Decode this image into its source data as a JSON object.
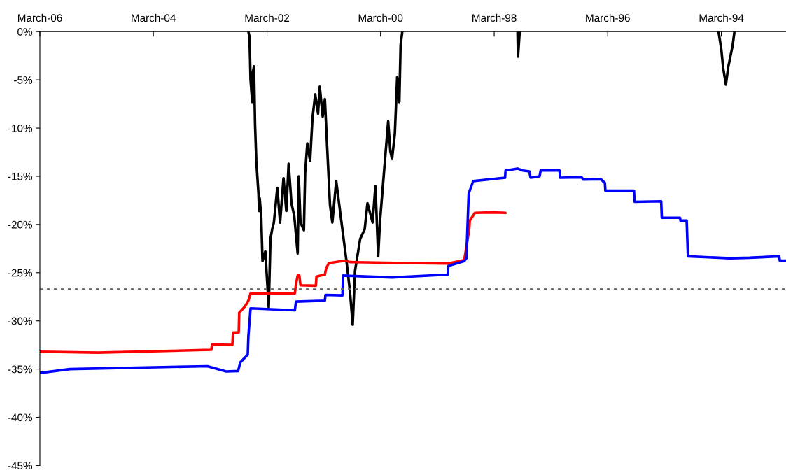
{
  "chart_data": {
    "type": "line",
    "xlim": [
      "2006-03-15",
      "1993-01-23"
    ],
    "ylim": [
      -45,
      0
    ],
    "xticks": [
      {
        "value": "2006-03-15",
        "label": "March-06"
      },
      {
        "value": "2004-03-15",
        "label": "March-04"
      },
      {
        "value": "2002-03-15",
        "label": "March-02"
      },
      {
        "value": "2000-03-15",
        "label": "March-00"
      },
      {
        "value": "1998-03-15",
        "label": "March-98"
      },
      {
        "value": "1996-03-15",
        "label": "March-96"
      },
      {
        "value": "1994-03-15",
        "label": "March-94"
      }
    ],
    "yticks": [
      {
        "value": 0,
        "label": "0%"
      },
      {
        "value": -5,
        "label": "-5%"
      },
      {
        "value": -10,
        "label": "-10%"
      },
      {
        "value": -15,
        "label": "-15%"
      },
      {
        "value": -20,
        "label": "-20%"
      },
      {
        "value": -25,
        "label": "-25%"
      },
      {
        "value": -30,
        "label": "-30%"
      },
      {
        "value": -35,
        "label": "-35%"
      },
      {
        "value": -40,
        "label": "-40%"
      },
      {
        "value": -45,
        "label": "-45%"
      }
    ],
    "grid": false,
    "marker": "none",
    "line_style": "solid",
    "ref_lines": [
      {
        "axis": "y",
        "value": -26.7,
        "color": "#606060",
        "line_style": "dashed"
      }
    ],
    "series": [
      {
        "color": "#000000",
        "x": [
          "2002-07-13",
          "2002-07-06",
          "2002-07-02",
          "2002-06-29",
          "2002-06-18",
          "2002-06-14",
          "2002-06-07",
          "2002-05-31",
          "2002-05-23",
          "2002-05-09",
          "2002-05-05",
          "2002-05-01",
          "2002-04-21",
          "2002-04-13",
          "2002-03-26",
          "2002-03-04",
          "2002-02-21",
          "2002-02-10",
          "2002-01-30",
          "2002-01-08",
          "2001-12-21",
          "2001-11-29",
          "2001-11-11",
          "2001-10-27",
          "2001-10-09",
          "2001-09-21",
          "2001-08-30",
          "2001-08-23",
          "2001-08-12",
          "2001-07-21",
          "2001-07-13",
          "2001-06-29",
          "2001-06-11",
          "2001-05-27",
          "2001-05-09",
          "2001-04-21",
          "2001-04-10",
          "2001-03-22",
          "2001-03-08",
          "2001-02-17",
          "2001-02-03",
          "2001-01-19",
          "2000-12-25",
          "2000-11-29",
          "2000-10-20",
          "2000-09-28",
          "2000-09-10",
          "2000-08-26",
          "2000-07-24",
          "2000-06-25",
          "2000-06-07",
          "2000-05-05",
          "2000-04-17",
          "2000-03-30",
          "2000-03-19",
          "2000-03-04",
          "2000-01-26",
          "2000-01-12",
          "2000-01-01",
          "1999-12-14",
          "1999-11-29",
          "1999-11-15",
          "1999-11-07",
          "1999-10-27",
          "1999-01-01",
          "1997-10-16",
          "1997-10-13",
          "1997-10-02",
          "1995-01-01",
          "1994-04-02",
          "1994-03-15",
          "1994-03-04",
          "1994-02-14",
          "1994-01-30",
          "1994-01-01",
          "1993-12-21"
        ],
        "values": [
          0,
          -0.5,
          -2.9,
          -5.0,
          -7.3,
          -4.2,
          -3.6,
          -9.6,
          -13.4,
          -16.8,
          -18.6,
          -17.3,
          -19.3,
          -23.8,
          -22.8,
          -28.6,
          -21.5,
          -20.5,
          -19.8,
          -16.2,
          -19.8,
          -15.2,
          -18.6,
          -13.7,
          -17.8,
          -19.1,
          -23.0,
          -15.0,
          -19.8,
          -20.6,
          -14.7,
          -11.6,
          -13.4,
          -9.0,
          -6.5,
          -8.5,
          -5.7,
          -8.8,
          -7.0,
          -13.4,
          -18.0,
          -19.8,
          -15.5,
          -18.8,
          -23.8,
          -26.9,
          -30.4,
          -24.8,
          -21.5,
          -20.5,
          -17.8,
          -19.8,
          -16.0,
          -23.3,
          -19.8,
          -16.8,
          -9.3,
          -12.4,
          -13.2,
          -10.6,
          -4.7,
          -7.3,
          -1.4,
          0,
          null,
          0,
          -2.6,
          0,
          null,
          0,
          -1.9,
          -3.7,
          -5.5,
          -3.7,
          -1.4,
          0
        ]
      },
      {
        "color": "#ff0000",
        "x": [
          "2006-03-15",
          "2005-03-08",
          "2003-03-08",
          "2003-03-04",
          "2002-10-24",
          "2002-10-20",
          "2002-09-13",
          "2002-09-10",
          "2002-08-04",
          "2002-07-13",
          "2002-06-29",
          "2001-09-17",
          "2001-09-10",
          "2001-08-30",
          "2001-08-19",
          "2001-08-12",
          "2001-05-05",
          "2001-05-01",
          "2001-03-08",
          "2001-02-28",
          "2001-02-10",
          "2000-10-27",
          "2000-09-28",
          "1999-10-13",
          "1999-01-08",
          "1998-09-24",
          "1998-09-06",
          "1998-08-23",
          "1998-08-19",
          "1998-07-17",
          "1998-03-26",
          "1998-01-01"
        ],
        "values": [
          -33.2,
          -33.3,
          -33.0,
          -32.45,
          -32.5,
          -31.2,
          -31.2,
          -29.15,
          -28.5,
          -27.9,
          -27.15,
          -27.15,
          -26.2,
          -25.3,
          -25.3,
          -26.3,
          -26.35,
          -25.4,
          -25.2,
          -24.55,
          -24.0,
          -23.75,
          -23.9,
          -24.0,
          -24.05,
          -23.7,
          -22.0,
          -20.5,
          -19.6,
          -18.8,
          -18.75,
          -18.8
        ]
      },
      {
        "color": "#0000ff",
        "x": [
          "2006-03-15",
          "2005-09-03",
          "2003-04-02",
          "2002-12-03",
          "2002-09-17",
          "2002-09-03",
          "2002-07-17",
          "2002-07-13",
          "2002-06-29",
          "2001-09-17",
          "2001-09-10",
          "2001-03-08",
          "2001-03-04",
          "2000-11-15",
          "2000-11-11",
          "2000-01-01",
          "1999-01-08",
          "1999-01-04",
          "1998-09-24",
          "1998-09-10",
          "1998-08-26",
          "1998-07-28",
          "1998-01-04",
          "1998-01-01",
          "1997-10-16",
          "1997-09-13",
          "1997-08-01",
          "1997-07-24",
          "1997-05-27",
          "1997-05-20",
          "1997-01-19",
          "1997-01-15",
          "1996-08-30",
          "1996-08-19",
          "1996-04-28",
          "1996-04-02",
          "1996-03-30",
          "1995-09-28",
          "1995-09-24",
          "1995-04-06",
          "1995-04-02",
          "1994-12-06",
          "1994-12-03",
          "1994-10-24",
          "1994-10-16",
          "1994-01-19",
          "1993-09-13",
          "1993-03-08",
          "1993-03-04",
          "1993-01-23"
        ],
        "values": [
          -35.4,
          -35.0,
          -34.7,
          -35.25,
          -35.2,
          -34.3,
          -33.5,
          -31.6,
          -28.7,
          -28.9,
          -28.0,
          -27.9,
          -27.3,
          -27.35,
          -25.3,
          -25.5,
          -25.2,
          -24.3,
          -23.8,
          -23.5,
          -16.8,
          -15.5,
          -15.15,
          -14.4,
          -14.2,
          -14.4,
          -14.5,
          -15.15,
          -15.0,
          -14.4,
          -14.4,
          -15.15,
          -15.1,
          -15.35,
          -15.3,
          -15.7,
          -16.5,
          -16.5,
          -17.65,
          -17.6,
          -19.3,
          -19.3,
          -19.6,
          -19.6,
          -23.3,
          -23.5,
          -23.45,
          -23.3,
          -23.75,
          -23.75
        ]
      }
    ]
  }
}
